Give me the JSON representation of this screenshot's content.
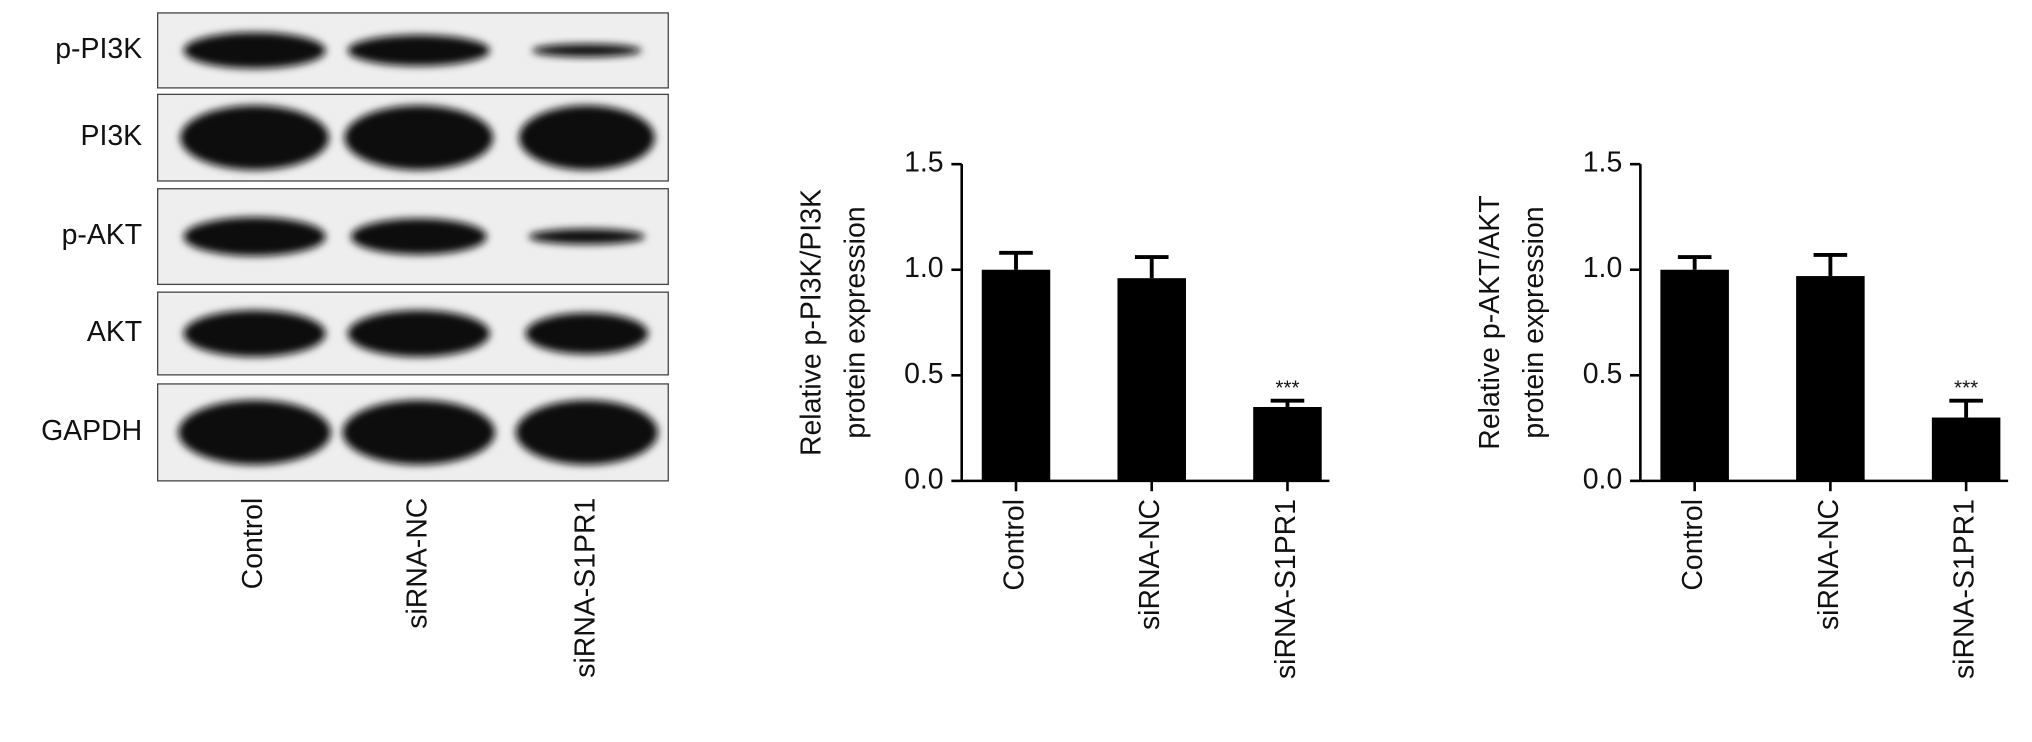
{
  "blot": {
    "rows": [
      "p-PI3K",
      "PI3K",
      "p-AKT",
      "AKT",
      "GAPDH"
    ],
    "lanes": [
      "Control",
      "siRNA-NC",
      "siRNA-S1PR1"
    ]
  },
  "chart_data": [
    {
      "type": "bar",
      "ylabel": [
        "Relative p-PI3K/PI3K",
        "protein expression"
      ],
      "categories": [
        "Control",
        "siRNA-NC",
        "siRNA-S1PR1"
      ],
      "values": [
        1.0,
        0.96,
        0.35
      ],
      "errors": [
        0.08,
        0.1,
        0.03
      ],
      "color": "#000000",
      "annotations": [
        {
          "text": "***",
          "x": "siRNA-S1PR1"
        }
      ],
      "ylim": [
        0,
        1.5
      ],
      "yticks": [
        {
          "value": 0,
          "label": "0.0"
        },
        {
          "value": 0.5,
          "label": "0.5"
        },
        {
          "value": 1,
          "label": "1.0"
        },
        {
          "value": 1.5,
          "label": "1.5"
        }
      ]
    },
    {
      "type": "bar",
      "ylabel": [
        "Relative p-AKT/AKT",
        "protein expression"
      ],
      "categories": [
        "Control",
        "siRNA-NC",
        "siRNA-S1PR1"
      ],
      "values": [
        1.0,
        0.97,
        0.3
      ],
      "errors": [
        0.06,
        0.1,
        0.08
      ],
      "color": "#000000",
      "annotations": [
        {
          "text": "***",
          "x": "siRNA-S1PR1"
        }
      ],
      "ylim": [
        0,
        1.5
      ],
      "yticks": [
        {
          "value": 0,
          "label": "0.0"
        },
        {
          "value": 0.5,
          "label": "0.5"
        },
        {
          "value": 1,
          "label": "1.0"
        },
        {
          "value": 1.5,
          "label": "1.5"
        }
      ]
    }
  ]
}
